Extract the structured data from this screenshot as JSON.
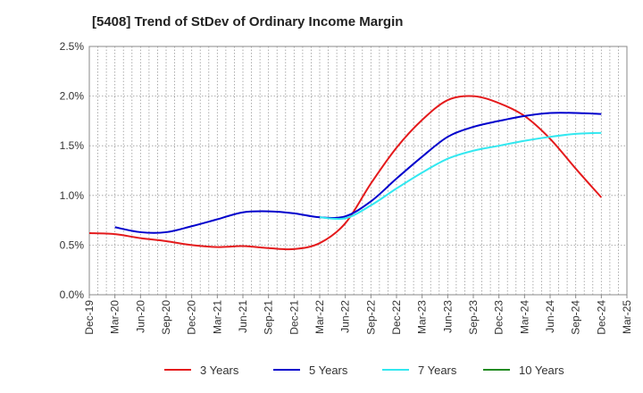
{
  "chart_data": {
    "type": "line",
    "title": "[5408]  Trend of StDev of Ordinary Income Margin",
    "xlabel": "",
    "ylabel": "",
    "ylim": [
      0,
      2.5
    ],
    "y_ticks": [
      "0.0%",
      "0.5%",
      "1.0%",
      "1.5%",
      "2.0%",
      "2.5%"
    ],
    "x_ticks": [
      "Dec-19",
      "Mar-20",
      "Jun-20",
      "Sep-20",
      "Dec-20",
      "Mar-21",
      "Jun-21",
      "Sep-21",
      "Dec-21",
      "Mar-22",
      "Jun-22",
      "Sep-22",
      "Dec-22",
      "Mar-23",
      "Jun-23",
      "Sep-23",
      "Dec-23",
      "Mar-24",
      "Jun-24",
      "Sep-24",
      "Dec-24",
      "Mar-25"
    ],
    "grid": true,
    "legend_position": "bottom",
    "series": [
      {
        "name": "3 Years",
        "color": "#e41a1c",
        "points": [
          [
            0,
            0.62
          ],
          [
            1,
            0.61
          ],
          [
            2,
            0.57
          ],
          [
            3,
            0.54
          ],
          [
            4,
            0.5
          ],
          [
            5,
            0.48
          ],
          [
            6,
            0.49
          ],
          [
            7,
            0.47
          ],
          [
            8,
            0.46
          ],
          [
            9,
            0.52
          ],
          [
            10,
            0.72
          ],
          [
            11,
            1.12
          ],
          [
            12,
            1.48
          ],
          [
            13,
            1.76
          ],
          [
            14,
            1.96
          ],
          [
            15,
            2.0
          ],
          [
            16,
            1.93
          ],
          [
            17,
            1.8
          ],
          [
            18,
            1.57
          ],
          [
            19,
            1.27
          ],
          [
            20,
            0.98
          ]
        ]
      },
      {
        "name": "5 Years",
        "color": "#0000cc",
        "points": [
          [
            1,
            0.68
          ],
          [
            2,
            0.63
          ],
          [
            3,
            0.63
          ],
          [
            4,
            0.69
          ],
          [
            5,
            0.76
          ],
          [
            6,
            0.83
          ],
          [
            7,
            0.84
          ],
          [
            8,
            0.82
          ],
          [
            9,
            0.78
          ],
          [
            10,
            0.79
          ],
          [
            11,
            0.94
          ],
          [
            12,
            1.17
          ],
          [
            13,
            1.39
          ],
          [
            14,
            1.59
          ],
          [
            15,
            1.69
          ],
          [
            16,
            1.75
          ],
          [
            17,
            1.8
          ],
          [
            18,
            1.83
          ],
          [
            19,
            1.83
          ],
          [
            20,
            1.82
          ]
        ]
      },
      {
        "name": "7 Years",
        "color": "#33e8f0",
        "points": [
          [
            9,
            0.78
          ],
          [
            10,
            0.77
          ],
          [
            11,
            0.9
          ],
          [
            12,
            1.07
          ],
          [
            13,
            1.23
          ],
          [
            14,
            1.37
          ],
          [
            15,
            1.45
          ],
          [
            16,
            1.5
          ],
          [
            17,
            1.55
          ],
          [
            18,
            1.59
          ],
          [
            19,
            1.62
          ],
          [
            20,
            1.63
          ]
        ]
      },
      {
        "name": "10 Years",
        "color": "#228b22",
        "points": []
      }
    ]
  }
}
